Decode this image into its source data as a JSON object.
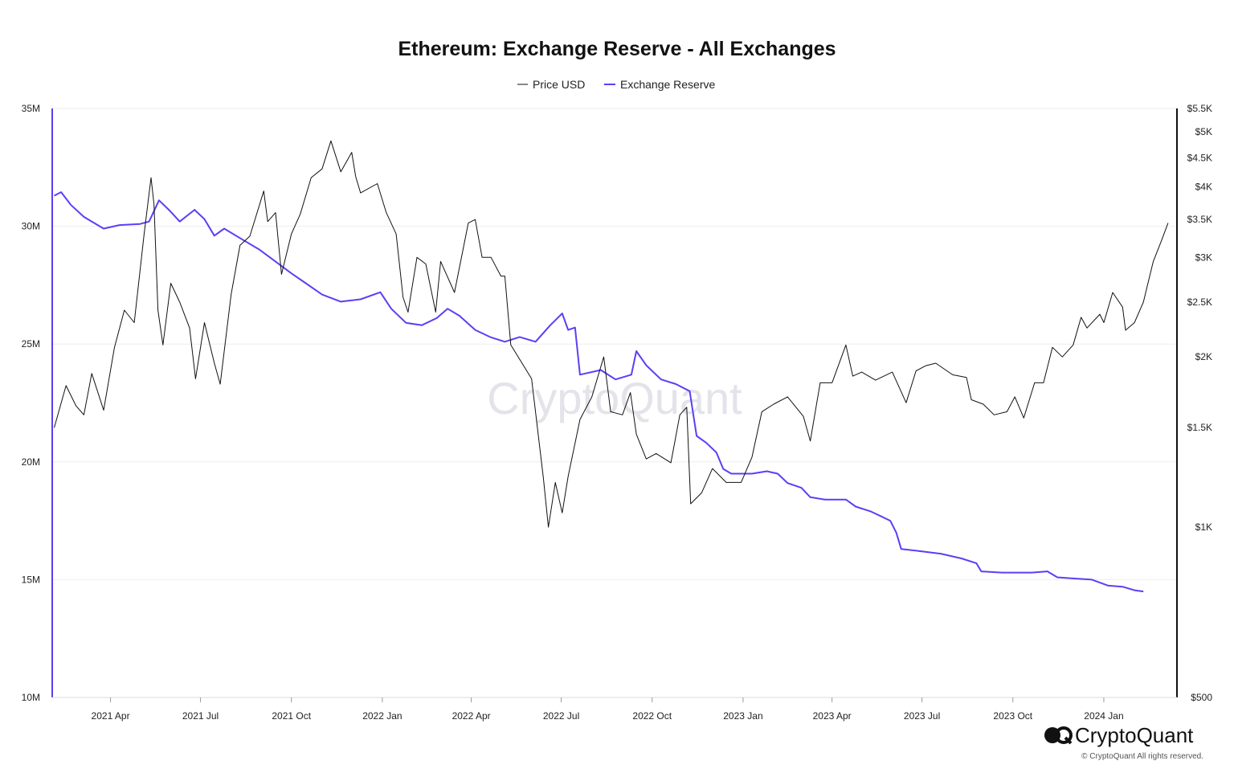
{
  "colors": {
    "price": "#111111",
    "reserve": "#5b3ff5",
    "grid": "#eeeeee",
    "text": "#222222",
    "watermark": "#e3e3ea"
  },
  "chart_data": {
    "type": "line",
    "title": "Ethereum: Exchange Reserve - All Exchanges",
    "legend": {
      "placement": "top-center",
      "entries": [
        "Price USD",
        "Exchange Reserve"
      ]
    },
    "grid": true,
    "x_axis": {
      "type": "date",
      "range": [
        "2021-02-01",
        "2024-03-15"
      ],
      "tick_labels": [
        "2021 Apr",
        "2021 Jul",
        "2021 Oct",
        "2022 Jan",
        "2022 Apr",
        "2022 Jul",
        "2022 Oct",
        "2023 Jan",
        "2023 Apr",
        "2023 Jul",
        "2023 Oct",
        "2024 Jan"
      ],
      "tick_dates": [
        "2021-04-01",
        "2021-07-01",
        "2021-10-01",
        "2022-01-01",
        "2022-04-01",
        "2022-07-01",
        "2022-10-01",
        "2023-01-01",
        "2023-04-01",
        "2023-07-01",
        "2023-10-01",
        "2024-01-01"
      ]
    },
    "y_left": {
      "range": [
        10000000,
        35000000
      ],
      "ticks": [
        10000000,
        15000000,
        20000000,
        25000000,
        30000000,
        35000000
      ],
      "tick_labels": [
        "10M",
        "15M",
        "20M",
        "25M",
        "30M",
        "35M"
      ]
    },
    "y_right": {
      "scale": "log",
      "range": [
        500,
        5500
      ],
      "ticks": [
        500,
        1000,
        1500,
        2000,
        2500,
        3000,
        3500,
        4000,
        4500,
        5000,
        5500
      ],
      "tick_labels": [
        "$500",
        "$1K",
        "$1.5K",
        "$2K",
        "$2.5K",
        "$3K",
        "$3.5K",
        "$4K",
        "$4.5K",
        "$5K",
        "$5.5K"
      ]
    },
    "series": [
      {
        "name": "Price USD",
        "axis": "right",
        "points": [
          [
            "2021-02-03",
            1500
          ],
          [
            "2021-02-15",
            1780
          ],
          [
            "2021-02-25",
            1640
          ],
          [
            "2021-03-05",
            1580
          ],
          [
            "2021-03-13",
            1870
          ],
          [
            "2021-03-25",
            1610
          ],
          [
            "2021-04-05",
            2080
          ],
          [
            "2021-04-15",
            2420
          ],
          [
            "2021-04-25",
            2300
          ],
          [
            "2021-05-05",
            3300
          ],
          [
            "2021-05-12",
            4150
          ],
          [
            "2021-05-15",
            3720
          ],
          [
            "2021-05-19",
            2420
          ],
          [
            "2021-05-24",
            2100
          ],
          [
            "2021-06-01",
            2700
          ],
          [
            "2021-06-10",
            2500
          ],
          [
            "2021-06-20",
            2250
          ],
          [
            "2021-06-26",
            1830
          ],
          [
            "2021-07-05",
            2300
          ],
          [
            "2021-07-15",
            1950
          ],
          [
            "2021-07-21",
            1790
          ],
          [
            "2021-08-01",
            2580
          ],
          [
            "2021-08-10",
            3150
          ],
          [
            "2021-08-20",
            3270
          ],
          [
            "2021-09-03",
            3930
          ],
          [
            "2021-09-07",
            3470
          ],
          [
            "2021-09-15",
            3600
          ],
          [
            "2021-09-21",
            2800
          ],
          [
            "2021-10-01",
            3300
          ],
          [
            "2021-10-10",
            3580
          ],
          [
            "2021-10-21",
            4150
          ],
          [
            "2021-11-01",
            4300
          ],
          [
            "2021-11-10",
            4820
          ],
          [
            "2021-11-20",
            4250
          ],
          [
            "2021-12-01",
            4600
          ],
          [
            "2021-12-05",
            4170
          ],
          [
            "2021-12-10",
            3900
          ],
          [
            "2021-12-27",
            4050
          ],
          [
            "2022-01-05",
            3600
          ],
          [
            "2022-01-15",
            3300
          ],
          [
            "2022-01-22",
            2550
          ],
          [
            "2022-01-27",
            2400
          ],
          [
            "2022-02-05",
            3000
          ],
          [
            "2022-02-14",
            2920
          ],
          [
            "2022-02-24",
            2400
          ],
          [
            "2022-03-01",
            2950
          ],
          [
            "2022-03-15",
            2600
          ],
          [
            "2022-03-29",
            3450
          ],
          [
            "2022-04-05",
            3500
          ],
          [
            "2022-04-12",
            3000
          ],
          [
            "2022-04-21",
            3000
          ],
          [
            "2022-05-01",
            2780
          ],
          [
            "2022-05-05",
            2780
          ],
          [
            "2022-05-11",
            2100
          ],
          [
            "2022-05-20",
            1980
          ],
          [
            "2022-06-01",
            1830
          ],
          [
            "2022-06-13",
            1220
          ],
          [
            "2022-06-18",
            1000
          ],
          [
            "2022-06-25",
            1200
          ],
          [
            "2022-07-02",
            1060
          ],
          [
            "2022-07-08",
            1230
          ],
          [
            "2022-07-20",
            1550
          ],
          [
            "2022-08-01",
            1700
          ],
          [
            "2022-08-13",
            2000
          ],
          [
            "2022-08-20",
            1600
          ],
          [
            "2022-09-01",
            1580
          ],
          [
            "2022-09-09",
            1730
          ],
          [
            "2022-09-15",
            1460
          ],
          [
            "2022-09-25",
            1320
          ],
          [
            "2022-10-05",
            1350
          ],
          [
            "2022-10-20",
            1300
          ],
          [
            "2022-10-29",
            1580
          ],
          [
            "2022-11-05",
            1630
          ],
          [
            "2022-11-09",
            1100
          ],
          [
            "2022-11-20",
            1150
          ],
          [
            "2022-12-01",
            1270
          ],
          [
            "2022-12-15",
            1200
          ],
          [
            "2022-12-30",
            1200
          ],
          [
            "2023-01-10",
            1330
          ],
          [
            "2023-01-20",
            1600
          ],
          [
            "2023-02-01",
            1650
          ],
          [
            "2023-02-15",
            1700
          ],
          [
            "2023-03-03",
            1570
          ],
          [
            "2023-03-10",
            1420
          ],
          [
            "2023-03-20",
            1800
          ],
          [
            "2023-04-01",
            1800
          ],
          [
            "2023-04-15",
            2100
          ],
          [
            "2023-04-22",
            1850
          ],
          [
            "2023-05-01",
            1880
          ],
          [
            "2023-05-15",
            1820
          ],
          [
            "2023-06-01",
            1880
          ],
          [
            "2023-06-15",
            1660
          ],
          [
            "2023-06-25",
            1890
          ],
          [
            "2023-07-05",
            1930
          ],
          [
            "2023-07-15",
            1950
          ],
          [
            "2023-08-01",
            1860
          ],
          [
            "2023-08-15",
            1840
          ],
          [
            "2023-08-20",
            1680
          ],
          [
            "2023-09-01",
            1650
          ],
          [
            "2023-09-12",
            1580
          ],
          [
            "2023-09-25",
            1600
          ],
          [
            "2023-10-03",
            1700
          ],
          [
            "2023-10-12",
            1560
          ],
          [
            "2023-10-23",
            1800
          ],
          [
            "2023-11-01",
            1800
          ],
          [
            "2023-11-10",
            2080
          ],
          [
            "2023-11-20",
            2000
          ],
          [
            "2023-12-01",
            2100
          ],
          [
            "2023-12-09",
            2350
          ],
          [
            "2023-12-15",
            2250
          ],
          [
            "2023-12-28",
            2380
          ],
          [
            "2024-01-01",
            2300
          ],
          [
            "2024-01-10",
            2600
          ],
          [
            "2024-01-20",
            2450
          ],
          [
            "2024-01-23",
            2230
          ],
          [
            "2024-02-01",
            2300
          ],
          [
            "2024-02-10",
            2500
          ],
          [
            "2024-02-20",
            2950
          ],
          [
            "2024-02-28",
            3200
          ],
          [
            "2024-03-06",
            3450
          ]
        ]
      },
      {
        "name": "Exchange Reserve",
        "axis": "left",
        "points": [
          [
            "2021-02-03",
            31.3
          ],
          [
            "2021-02-10",
            31.45
          ],
          [
            "2021-02-20",
            30.9
          ],
          [
            "2021-03-05",
            30.4
          ],
          [
            "2021-03-25",
            29.9
          ],
          [
            "2021-04-10",
            30.05
          ],
          [
            "2021-05-01",
            30.1
          ],
          [
            "2021-05-10",
            30.2
          ],
          [
            "2021-05-20",
            31.1
          ],
          [
            "2021-05-30",
            30.7
          ],
          [
            "2021-06-10",
            30.2
          ],
          [
            "2021-06-25",
            30.7
          ],
          [
            "2021-07-05",
            30.3
          ],
          [
            "2021-07-15",
            29.6
          ],
          [
            "2021-07-25",
            29.9
          ],
          [
            "2021-08-10",
            29.5
          ],
          [
            "2021-08-30",
            29.0
          ],
          [
            "2021-09-15",
            28.5
          ],
          [
            "2021-10-01",
            28.0
          ],
          [
            "2021-10-15",
            27.6
          ],
          [
            "2021-11-01",
            27.1
          ],
          [
            "2021-11-20",
            26.8
          ],
          [
            "2021-12-10",
            26.9
          ],
          [
            "2021-12-30",
            27.2
          ],
          [
            "2022-01-10",
            26.5
          ],
          [
            "2022-01-25",
            25.9
          ],
          [
            "2022-02-10",
            25.8
          ],
          [
            "2022-02-25",
            26.1
          ],
          [
            "2022-03-08",
            26.5
          ],
          [
            "2022-03-20",
            26.2
          ],
          [
            "2022-04-05",
            25.6
          ],
          [
            "2022-04-20",
            25.3
          ],
          [
            "2022-05-05",
            25.1
          ],
          [
            "2022-05-20",
            25.3
          ],
          [
            "2022-06-05",
            25.1
          ],
          [
            "2022-06-20",
            25.8
          ],
          [
            "2022-07-02",
            26.3
          ],
          [
            "2022-07-08",
            25.6
          ],
          [
            "2022-07-15",
            25.7
          ],
          [
            "2022-07-20",
            23.7
          ],
          [
            "2022-08-10",
            23.9
          ],
          [
            "2022-08-25",
            23.5
          ],
          [
            "2022-09-10",
            23.7
          ],
          [
            "2022-09-15",
            24.7
          ],
          [
            "2022-09-25",
            24.1
          ],
          [
            "2022-10-10",
            23.5
          ],
          [
            "2022-10-25",
            23.3
          ],
          [
            "2022-11-08",
            23.0
          ],
          [
            "2022-11-15",
            21.1
          ],
          [
            "2022-11-25",
            20.8
          ],
          [
            "2022-12-05",
            20.4
          ],
          [
            "2022-12-12",
            19.7
          ],
          [
            "2022-12-20",
            19.5
          ],
          [
            "2023-01-10",
            19.5
          ],
          [
            "2023-01-25",
            19.6
          ],
          [
            "2023-02-05",
            19.5
          ],
          [
            "2023-02-15",
            19.1
          ],
          [
            "2023-03-01",
            18.9
          ],
          [
            "2023-03-10",
            18.5
          ],
          [
            "2023-03-25",
            18.4
          ],
          [
            "2023-04-15",
            18.4
          ],
          [
            "2023-04-25",
            18.1
          ],
          [
            "2023-05-10",
            17.9
          ],
          [
            "2023-05-20",
            17.7
          ],
          [
            "2023-05-30",
            17.5
          ],
          [
            "2023-06-05",
            17.0
          ],
          [
            "2023-06-10",
            16.3
          ],
          [
            "2023-07-01",
            16.2
          ],
          [
            "2023-07-20",
            16.1
          ],
          [
            "2023-08-10",
            15.9
          ],
          [
            "2023-08-25",
            15.7
          ],
          [
            "2023-08-30",
            15.35
          ],
          [
            "2023-09-20",
            15.3
          ],
          [
            "2023-10-20",
            15.3
          ],
          [
            "2023-11-05",
            15.35
          ],
          [
            "2023-11-15",
            15.1
          ],
          [
            "2023-12-01",
            15.05
          ],
          [
            "2023-12-20",
            15.0
          ],
          [
            "2024-01-05",
            14.75
          ],
          [
            "2024-01-20",
            14.7
          ],
          [
            "2024-02-01",
            14.55
          ],
          [
            "2024-02-10",
            14.5
          ]
        ]
      }
    ]
  },
  "watermark": {
    "text": "CryptoQuant"
  },
  "brand": {
    "logo_icon": "cryptoquant-logo-icon",
    "name": "CryptoQuant",
    "copyright": "© CryptoQuant All rights reserved."
  }
}
